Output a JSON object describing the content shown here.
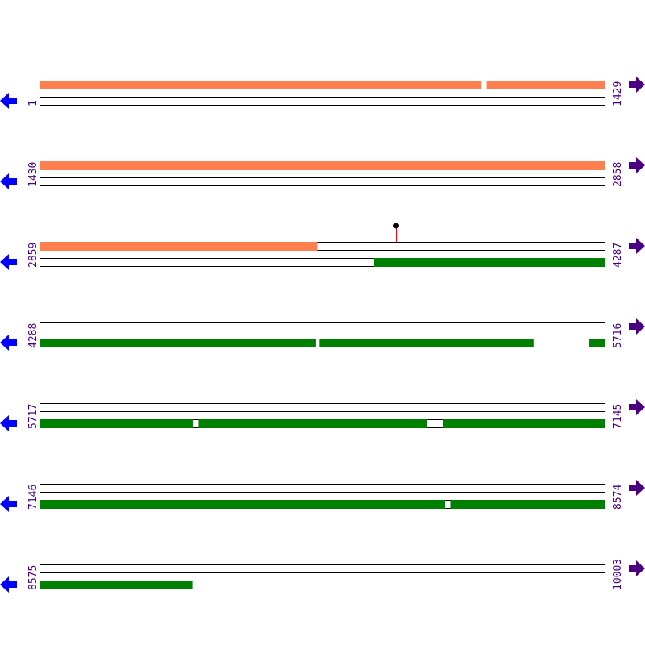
{
  "map": {
    "row_length": 1429,
    "rows": [
      {
        "start": 1,
        "end": 1429,
        "start_label": "1",
        "end_label": "1429"
      },
      {
        "start": 1430,
        "end": 2858,
        "start_label": "1430",
        "end_label": "2858"
      },
      {
        "start": 2859,
        "end": 4287,
        "start_label": "2859",
        "end_label": "4287"
      },
      {
        "start": 4288,
        "end": 5716,
        "start_label": "4288",
        "end_label": "5716"
      },
      {
        "start": 5717,
        "end": 7145,
        "start_label": "5717",
        "end_label": "7145"
      },
      {
        "start": 7146,
        "end": 8574,
        "start_label": "7146",
        "end_label": "8574"
      },
      {
        "start": 8575,
        "end": 10003,
        "start_label": "8575",
        "end_label": "10003"
      }
    ],
    "features": [
      {
        "track": "top",
        "color": "#ff7f50",
        "start": 1,
        "end": 1117
      },
      {
        "track": "top",
        "color": "#ff7f50",
        "start": 1131,
        "end": 3559
      },
      {
        "track": "bottom",
        "color": "#008000",
        "start": 3704,
        "end": 4985
      },
      {
        "track": "bottom",
        "color": "#008000",
        "start": 4995,
        "end": 5536
      },
      {
        "track": "bottom",
        "color": "#008000",
        "start": 5677,
        "end": 6102
      },
      {
        "track": "bottom",
        "color": "#008000",
        "start": 6118,
        "end": 6694
      },
      {
        "track": "bottom",
        "color": "#008000",
        "start": 6737,
        "end": 8170
      },
      {
        "track": "bottom",
        "color": "#008000",
        "start": 8184,
        "end": 8959
      }
    ],
    "markers": [
      {
        "position": 3759,
        "track": "top",
        "stem_color": "#ff0000",
        "head_color": "#000000"
      }
    ],
    "colors": {
      "left_arrow": "#0000ff",
      "right_arrow": "#4b0082",
      "label": "#4b0082",
      "line": "#000000"
    },
    "icons": {
      "left": "arrow-left-icon",
      "right": "arrow-right-icon"
    }
  }
}
